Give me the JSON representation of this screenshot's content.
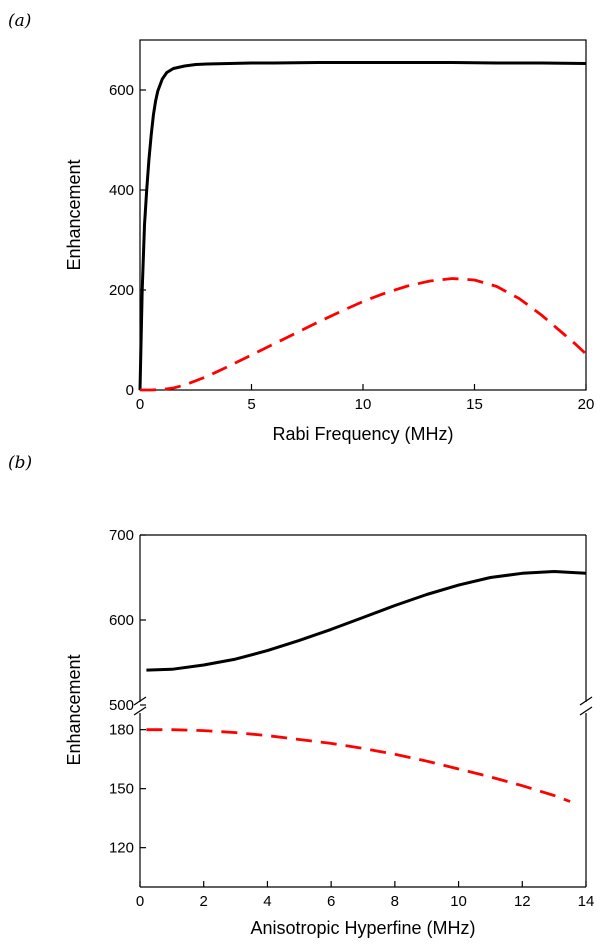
{
  "chart_data": [
    {
      "type": "line",
      "panel_label": "(a)",
      "xlabel": "Rabi Frequency (MHz)",
      "ylabel": "Enhancement",
      "xlim": [
        0,
        20
      ],
      "ylim": [
        0,
        700
      ],
      "xticks": [
        "0",
        "5",
        "10",
        "15",
        "20"
      ],
      "yticks": [
        "0",
        "200",
        "400",
        "600"
      ],
      "grid": false,
      "series": [
        {
          "style": "solid",
          "color": "#000000",
          "x": [
            0,
            0.1,
            0.2,
            0.3,
            0.4,
            0.5,
            0.6,
            0.7,
            0.8,
            1.0,
            1.2,
            1.5,
            2,
            2.5,
            3,
            4,
            5,
            6,
            8,
            10,
            12,
            14,
            16,
            18,
            20
          ],
          "y": [
            0,
            200,
            330,
            400,
            460,
            510,
            550,
            578,
            598,
            622,
            635,
            643,
            648,
            651,
            652,
            653,
            654,
            654,
            655,
            655,
            655,
            655,
            654,
            654,
            653
          ]
        },
        {
          "style": "dashed",
          "color": "#ff0000",
          "x": [
            0,
            0.5,
            1,
            1.5,
            2,
            3,
            4,
            5,
            6,
            7,
            8,
            9,
            10,
            11,
            12,
            13,
            14,
            15,
            16,
            17,
            18,
            19,
            19.5,
            20
          ],
          "y": [
            0,
            0,
            1,
            4,
            10,
            27,
            48,
            70,
            92,
            114,
            136,
            157,
            177,
            194,
            208,
            218,
            223,
            220,
            207,
            183,
            150,
            112,
            93,
            72
          ]
        }
      ]
    },
    {
      "type": "line",
      "panel_label": "(b)",
      "xlabel": "Anisotropic Hyperfine (MHz)",
      "ylabel": "Enhancement",
      "xlim": [
        0,
        14
      ],
      "broken_y_axis": true,
      "ylim_upper": [
        500,
        700
      ],
      "ylim_lower": [
        100,
        190
      ],
      "xticks": [
        "0",
        "2",
        "4",
        "6",
        "8",
        "10",
        "12",
        "14"
      ],
      "yticks_upper": [
        "500",
        "600",
        "700"
      ],
      "yticks_lower": [
        "120",
        "150",
        "180"
      ],
      "grid": false,
      "series": [
        {
          "style": "solid",
          "color": "#000000",
          "x": [
            0.2,
            1,
            2,
            3,
            4,
            5,
            6,
            7,
            8,
            9,
            10,
            11,
            12,
            13,
            14
          ],
          "y": [
            541,
            542,
            547,
            554,
            564,
            576,
            589,
            603,
            617,
            630,
            641,
            650,
            655,
            657,
            655
          ]
        },
        {
          "style": "dashed",
          "color": "#ff0000",
          "x": [
            0.2,
            1,
            2,
            3,
            4,
            5,
            6,
            7,
            8,
            9,
            10,
            11,
            12,
            13,
            13.5
          ],
          "y": [
            180,
            180,
            179.5,
            178.5,
            177,
            175,
            173,
            170.5,
            167.5,
            164,
            160,
            156,
            151.5,
            146.5,
            143.5
          ]
        }
      ]
    }
  ]
}
